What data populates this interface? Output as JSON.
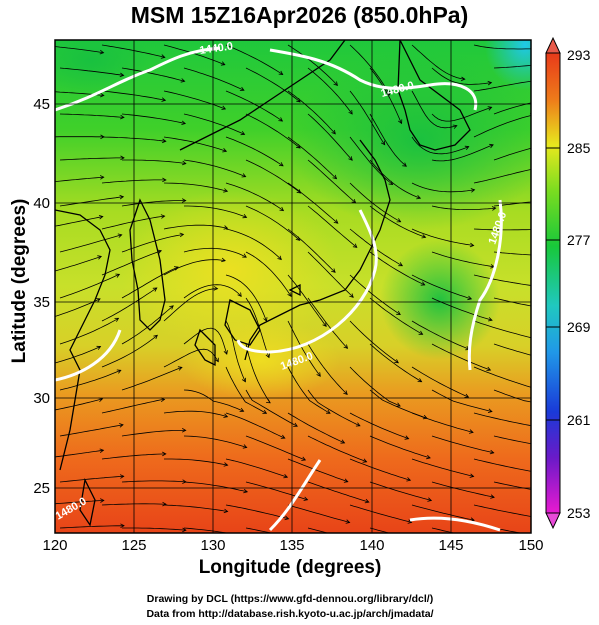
{
  "title": "MSM 15Z16Apr2026 (850.0hPa)",
  "x_axis": {
    "label": "Longitude (degrees)",
    "ticks": [
      "120",
      "125",
      "130",
      "135",
      "140",
      "145",
      "150"
    ]
  },
  "y_axis": {
    "label": "Latitude  (degrees)",
    "ticks": [
      "45",
      "40",
      "35",
      "30",
      "25"
    ]
  },
  "colorbar": {
    "ticks": [
      "293",
      "285",
      "277",
      "269",
      "261",
      "253"
    ],
    "min": 253,
    "max": 293
  },
  "contour_labels": [
    "1440.0",
    "1480.0",
    "1480.0",
    "1480.0",
    "1480.0"
  ],
  "credits": {
    "line1": "Drawing by DCL (https://www.gfd-dennou.org/library/dcl/)",
    "line2": "Data from http://database.rish.kyoto-u.ac.jp/arch/jmadata/"
  },
  "colors": {
    "warm": "#e83a17",
    "mid": "#e8e81e",
    "cool": "#1ac820",
    "cold": "#20c8e6"
  }
}
